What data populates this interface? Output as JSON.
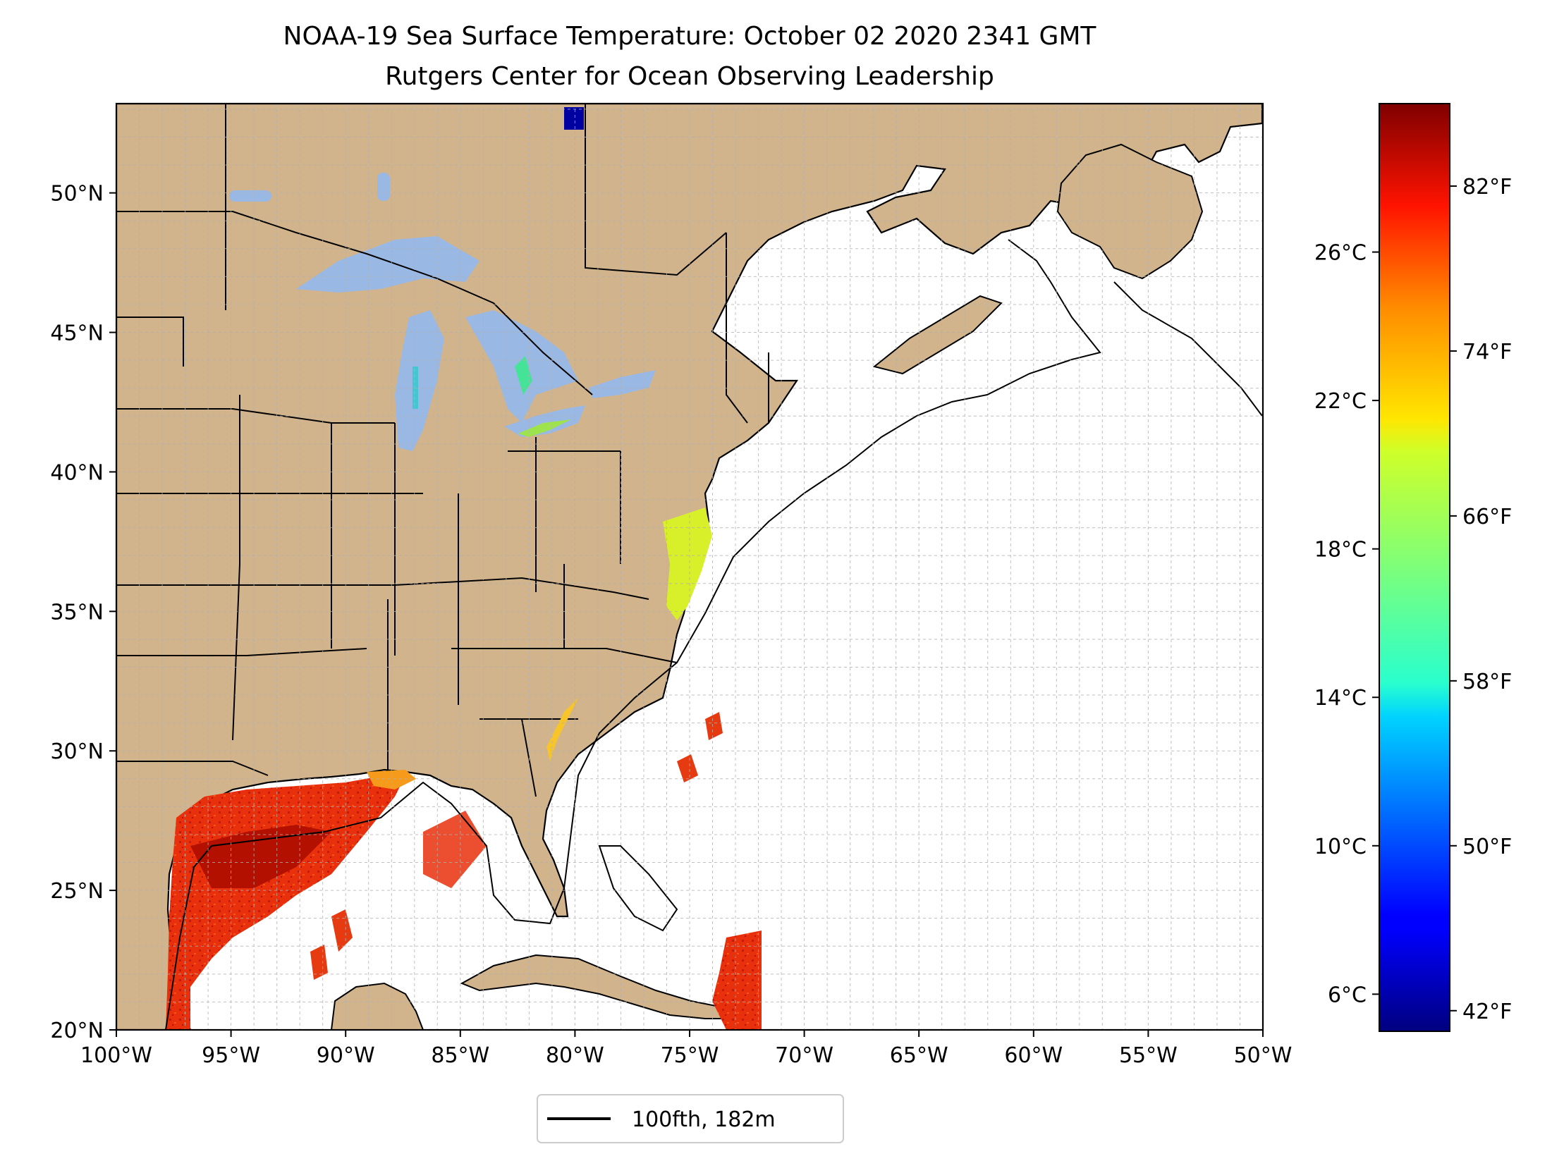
{
  "title_line1": "NOAA-19 Sea Surface Temperature: October 02 2020 2341 GMT",
  "title_line2": "Rutgers Center for Ocean Observing Leadership",
  "map": {
    "lon_range": [
      -100,
      -50
    ],
    "lat_range": [
      20,
      53.2
    ],
    "lon_ticks": [
      -100,
      -95,
      -90,
      -85,
      -80,
      -75,
      -70,
      -65,
      -60,
      -55,
      -50
    ],
    "lat_ticks": [
      20,
      25,
      30,
      35,
      40,
      45,
      50
    ],
    "lon_tick_labels": [
      "100°W",
      "95°W",
      "90°W",
      "85°W",
      "80°W",
      "75°W",
      "70°W",
      "65°W",
      "60°W",
      "55°W",
      "50°W"
    ],
    "lat_tick_labels": [
      "20°N",
      "25°N",
      "30°N",
      "35°N",
      "40°N",
      "45°N",
      "50°N"
    ],
    "land_color": "#d2b48c",
    "lake_color": "#9ab8e4",
    "ocean_color": "#ffffff"
  },
  "colorbar": {
    "colormap": "jet",
    "celsius_range": [
      5,
      30
    ],
    "celsius_ticks": [
      6,
      10,
      14,
      18,
      22,
      26
    ],
    "celsius_labels": [
      "6°C",
      "10°C",
      "14°C",
      "18°C",
      "22°C",
      "26°C"
    ],
    "fahrenheit_ticks": [
      42,
      50,
      58,
      66,
      74,
      82
    ],
    "fahrenheit_labels": [
      "42°F",
      "50°F",
      "58°F",
      "66°F",
      "74°F",
      "82°F"
    ]
  },
  "legend": {
    "label": "100fth, 182m"
  }
}
